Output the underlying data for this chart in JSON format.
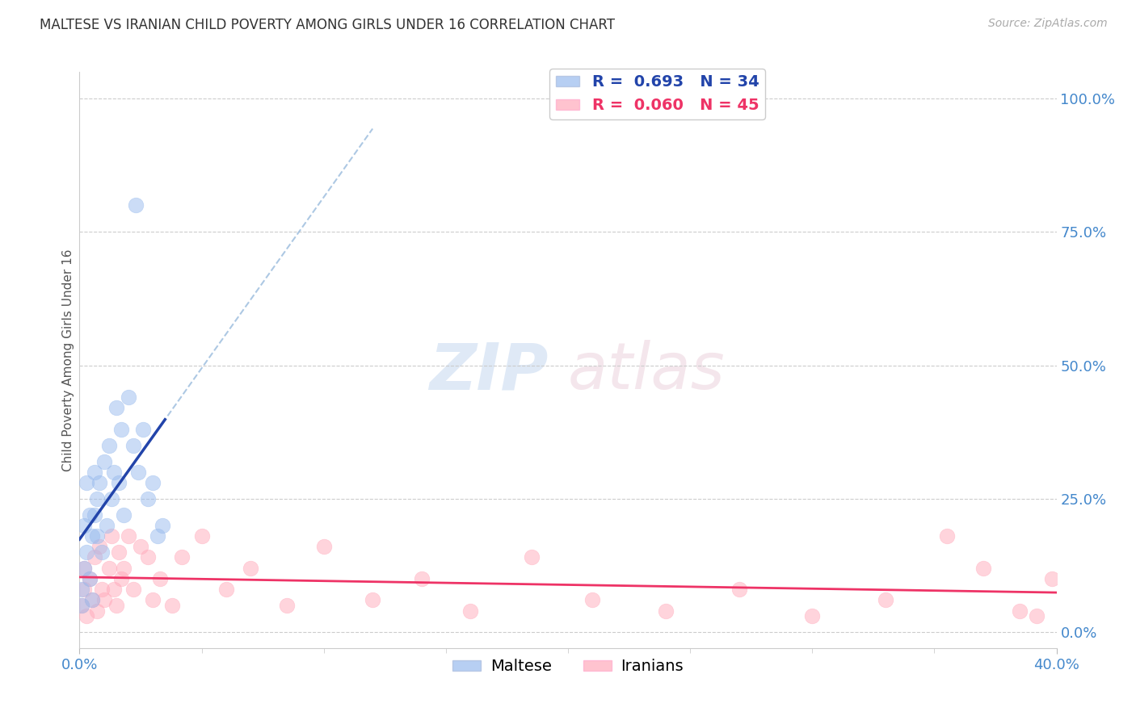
{
  "title": "MALTESE VS IRANIAN CHILD POVERTY AMONG GIRLS UNDER 16 CORRELATION CHART",
  "source": "Source: ZipAtlas.com",
  "ylabel": "Child Poverty Among Girls Under 16",
  "xlim": [
    0.0,
    0.4
  ],
  "ylim": [
    -0.03,
    1.05
  ],
  "xticks": [
    0.0,
    0.4
  ],
  "xticklabels": [
    "0.0%",
    "40.0%"
  ],
  "yticks_right": [
    0.0,
    0.25,
    0.5,
    0.75,
    1.0
  ],
  "yticklabels_right": [
    "0.0%",
    "25.0%",
    "50.0%",
    "75.0%",
    "100.0%"
  ],
  "maltese_R": "0.693",
  "maltese_N": "34",
  "iranian_R": "0.060",
  "iranian_N": "45",
  "blue_color": "#99bbee",
  "pink_color": "#ffaabb",
  "blue_line_color": "#2244aa",
  "pink_line_color": "#ee3366",
  "dashed_line_color": "#99bbdd",
  "maltese_x": [
    0.001,
    0.001,
    0.002,
    0.002,
    0.003,
    0.003,
    0.004,
    0.004,
    0.005,
    0.005,
    0.006,
    0.006,
    0.007,
    0.007,
    0.008,
    0.009,
    0.01,
    0.011,
    0.012,
    0.013,
    0.014,
    0.015,
    0.016,
    0.017,
    0.018,
    0.02,
    0.022,
    0.023,
    0.024,
    0.026,
    0.028,
    0.03,
    0.032,
    0.034
  ],
  "maltese_y": [
    0.05,
    0.08,
    0.12,
    0.2,
    0.15,
    0.28,
    0.1,
    0.22,
    0.06,
    0.18,
    0.22,
    0.3,
    0.18,
    0.25,
    0.28,
    0.15,
    0.32,
    0.2,
    0.35,
    0.25,
    0.3,
    0.42,
    0.28,
    0.38,
    0.22,
    0.44,
    0.35,
    0.8,
    0.3,
    0.38,
    0.25,
    0.28,
    0.18,
    0.2
  ],
  "iranian_x": [
    0.001,
    0.002,
    0.002,
    0.003,
    0.004,
    0.005,
    0.006,
    0.007,
    0.008,
    0.009,
    0.01,
    0.012,
    0.013,
    0.014,
    0.015,
    0.016,
    0.017,
    0.018,
    0.02,
    0.022,
    0.025,
    0.028,
    0.03,
    0.033,
    0.038,
    0.042,
    0.05,
    0.06,
    0.07,
    0.085,
    0.1,
    0.12,
    0.14,
    0.16,
    0.185,
    0.21,
    0.24,
    0.27,
    0.3,
    0.33,
    0.355,
    0.37,
    0.385,
    0.392,
    0.398
  ],
  "iranian_y": [
    0.05,
    0.08,
    0.12,
    0.03,
    0.1,
    0.06,
    0.14,
    0.04,
    0.16,
    0.08,
    0.06,
    0.12,
    0.18,
    0.08,
    0.05,
    0.15,
    0.1,
    0.12,
    0.18,
    0.08,
    0.16,
    0.14,
    0.06,
    0.1,
    0.05,
    0.14,
    0.18,
    0.08,
    0.12,
    0.05,
    0.16,
    0.06,
    0.1,
    0.04,
    0.14,
    0.06,
    0.04,
    0.08,
    0.03,
    0.06,
    0.18,
    0.12,
    0.04,
    0.03,
    0.1
  ]
}
